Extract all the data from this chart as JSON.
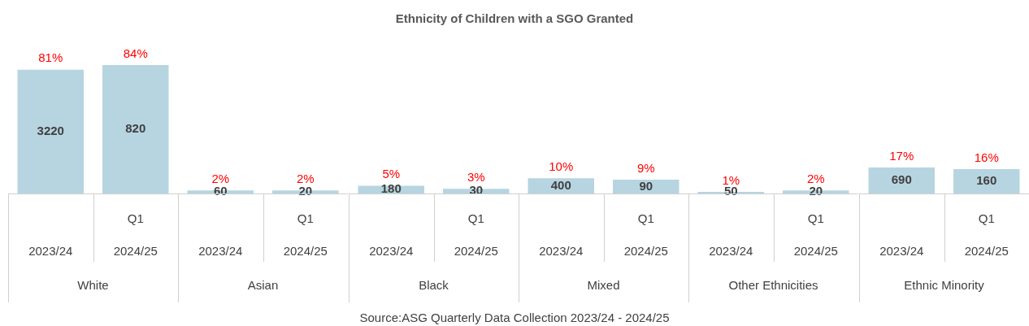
{
  "chart_data": [
    {
      "type": "bar",
      "categories": [
        "2023/24",
        "2024/25"
      ],
      "values": [
        81,
        84
      ],
      "color": "#b7d5e1",
      "value_labels": [
        "81%",
        "84%"
      ],
      "xlabel": "White",
      "annotations": [
        "3220",
        "820",
        "Q1"
      ]
    },
    {
      "type": "bar",
      "categories": [
        "2023/24",
        "2024/25"
      ],
      "values": [
        2,
        2
      ],
      "color": "#b7d5e1",
      "value_labels": [
        "2%",
        "2%"
      ],
      "xlabel": "Asian",
      "annotations": [
        "60",
        "20",
        "Q1"
      ]
    },
    {
      "type": "bar",
      "title": "Ethnicity of Children with a SGO Granted",
      "categories": [
        "2023/24",
        "2024/25"
      ],
      "values": [
        5,
        3
      ],
      "color": "#b7d5e1",
      "value_labels": [
        "5%",
        "3%"
      ],
      "xlabel": "Black",
      "annotations": [
        "180",
        "30",
        "Q1"
      ]
    },
    {
      "type": "bar",
      "categories": [
        "2023/24",
        "2024/25"
      ],
      "values": [
        10,
        9
      ],
      "color": "#b7d5e1",
      "value_labels": [
        "10%",
        "9%"
      ],
      "xlabel": "Mixed",
      "annotations": [
        "400",
        "90",
        "Q1"
      ]
    },
    {
      "type": "bar",
      "categories": [
        "2023/24",
        "2024/25"
      ],
      "values": [
        1,
        2
      ],
      "color": "#b7d5e1",
      "value_labels": [
        "1%",
        "2%"
      ],
      "xlabel": "Other Ethnicities",
      "annotations": [
        "50",
        "20",
        "Q1"
      ]
    },
    {
      "type": "bar",
      "categories": [
        "2023/24",
        "2024/25"
      ],
      "values": [
        17,
        16
      ],
      "color": "#b7d5e1",
      "value_labels": [
        "17%",
        "16%"
      ],
      "xlabel": "Ethnic Minority",
      "annotations": [
        "690",
        "160",
        "Q1",
        "Source:ASG Quarterly Data Collection 2023/24 - 2024/25"
      ]
    }
  ]
}
